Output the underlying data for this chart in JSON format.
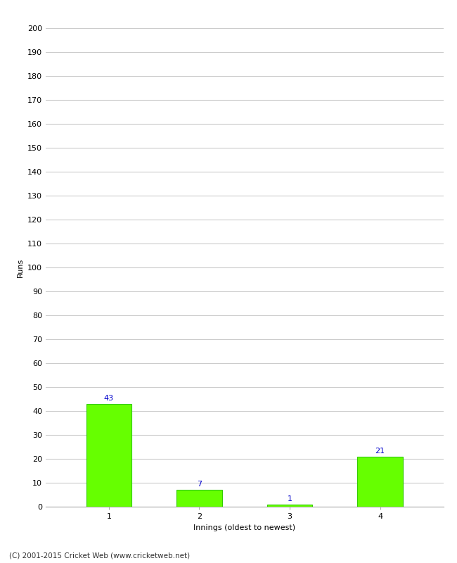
{
  "categories": [
    "1",
    "2",
    "3",
    "4"
  ],
  "values": [
    43,
    7,
    1,
    21
  ],
  "bar_color": "#66ff00",
  "bar_edge_color": "#33cc00",
  "xlabel": "Innings (oldest to newest)",
  "ylabel": "Runs",
  "ylim": [
    0,
    200
  ],
  "yticks": [
    0,
    10,
    20,
    30,
    40,
    50,
    60,
    70,
    80,
    90,
    100,
    110,
    120,
    130,
    140,
    150,
    160,
    170,
    180,
    190,
    200
  ],
  "label_color": "#0000cc",
  "label_fontsize": 8,
  "axis_fontsize": 8,
  "xlabel_fontsize": 8,
  "ylabel_fontsize": 8,
  "footer": "(C) 2001-2015 Cricket Web (www.cricketweb.net)",
  "background_color": "#ffffff",
  "grid_color": "#cccccc",
  "bar_width": 0.5
}
